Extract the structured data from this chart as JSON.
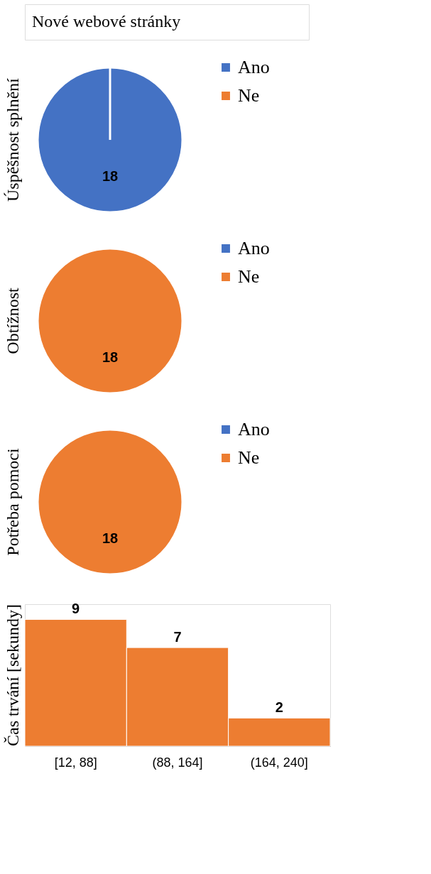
{
  "chart_data": [
    {
      "type": "other",
      "title": "Nové webové stránky"
    },
    {
      "type": "pie",
      "title": "Úspěšnost splnění",
      "categories": [
        "Ano",
        "Ne"
      ],
      "values": [
        18,
        0
      ],
      "colors": [
        "#4472c4",
        "#ed7d31"
      ],
      "value_labels": [
        "18",
        null
      ],
      "legend": "right"
    },
    {
      "type": "pie",
      "title": "Obtížnost",
      "categories": [
        "Ano",
        "Ne"
      ],
      "values": [
        0,
        18
      ],
      "colors": [
        "#4472c4",
        "#ed7d31"
      ],
      "value_labels": [
        null,
        "18"
      ],
      "legend": "right"
    },
    {
      "type": "pie",
      "title": "Potřeba pomoci",
      "categories": [
        "Ano",
        "Ne"
      ],
      "values": [
        0,
        18
      ],
      "colors": [
        "#4472c4",
        "#ed7d31"
      ],
      "value_labels": [
        null,
        "18"
      ],
      "legend": "right"
    },
    {
      "type": "bar",
      "title": "Čas trvání [sekundy]",
      "categories": [
        "[12, 88]",
        "(88, 164]",
        "(164, 240]"
      ],
      "values": [
        9,
        7,
        2
      ],
      "color": "#ed7d31",
      "data_labels": true,
      "tick_labels": "x"
    }
  ]
}
